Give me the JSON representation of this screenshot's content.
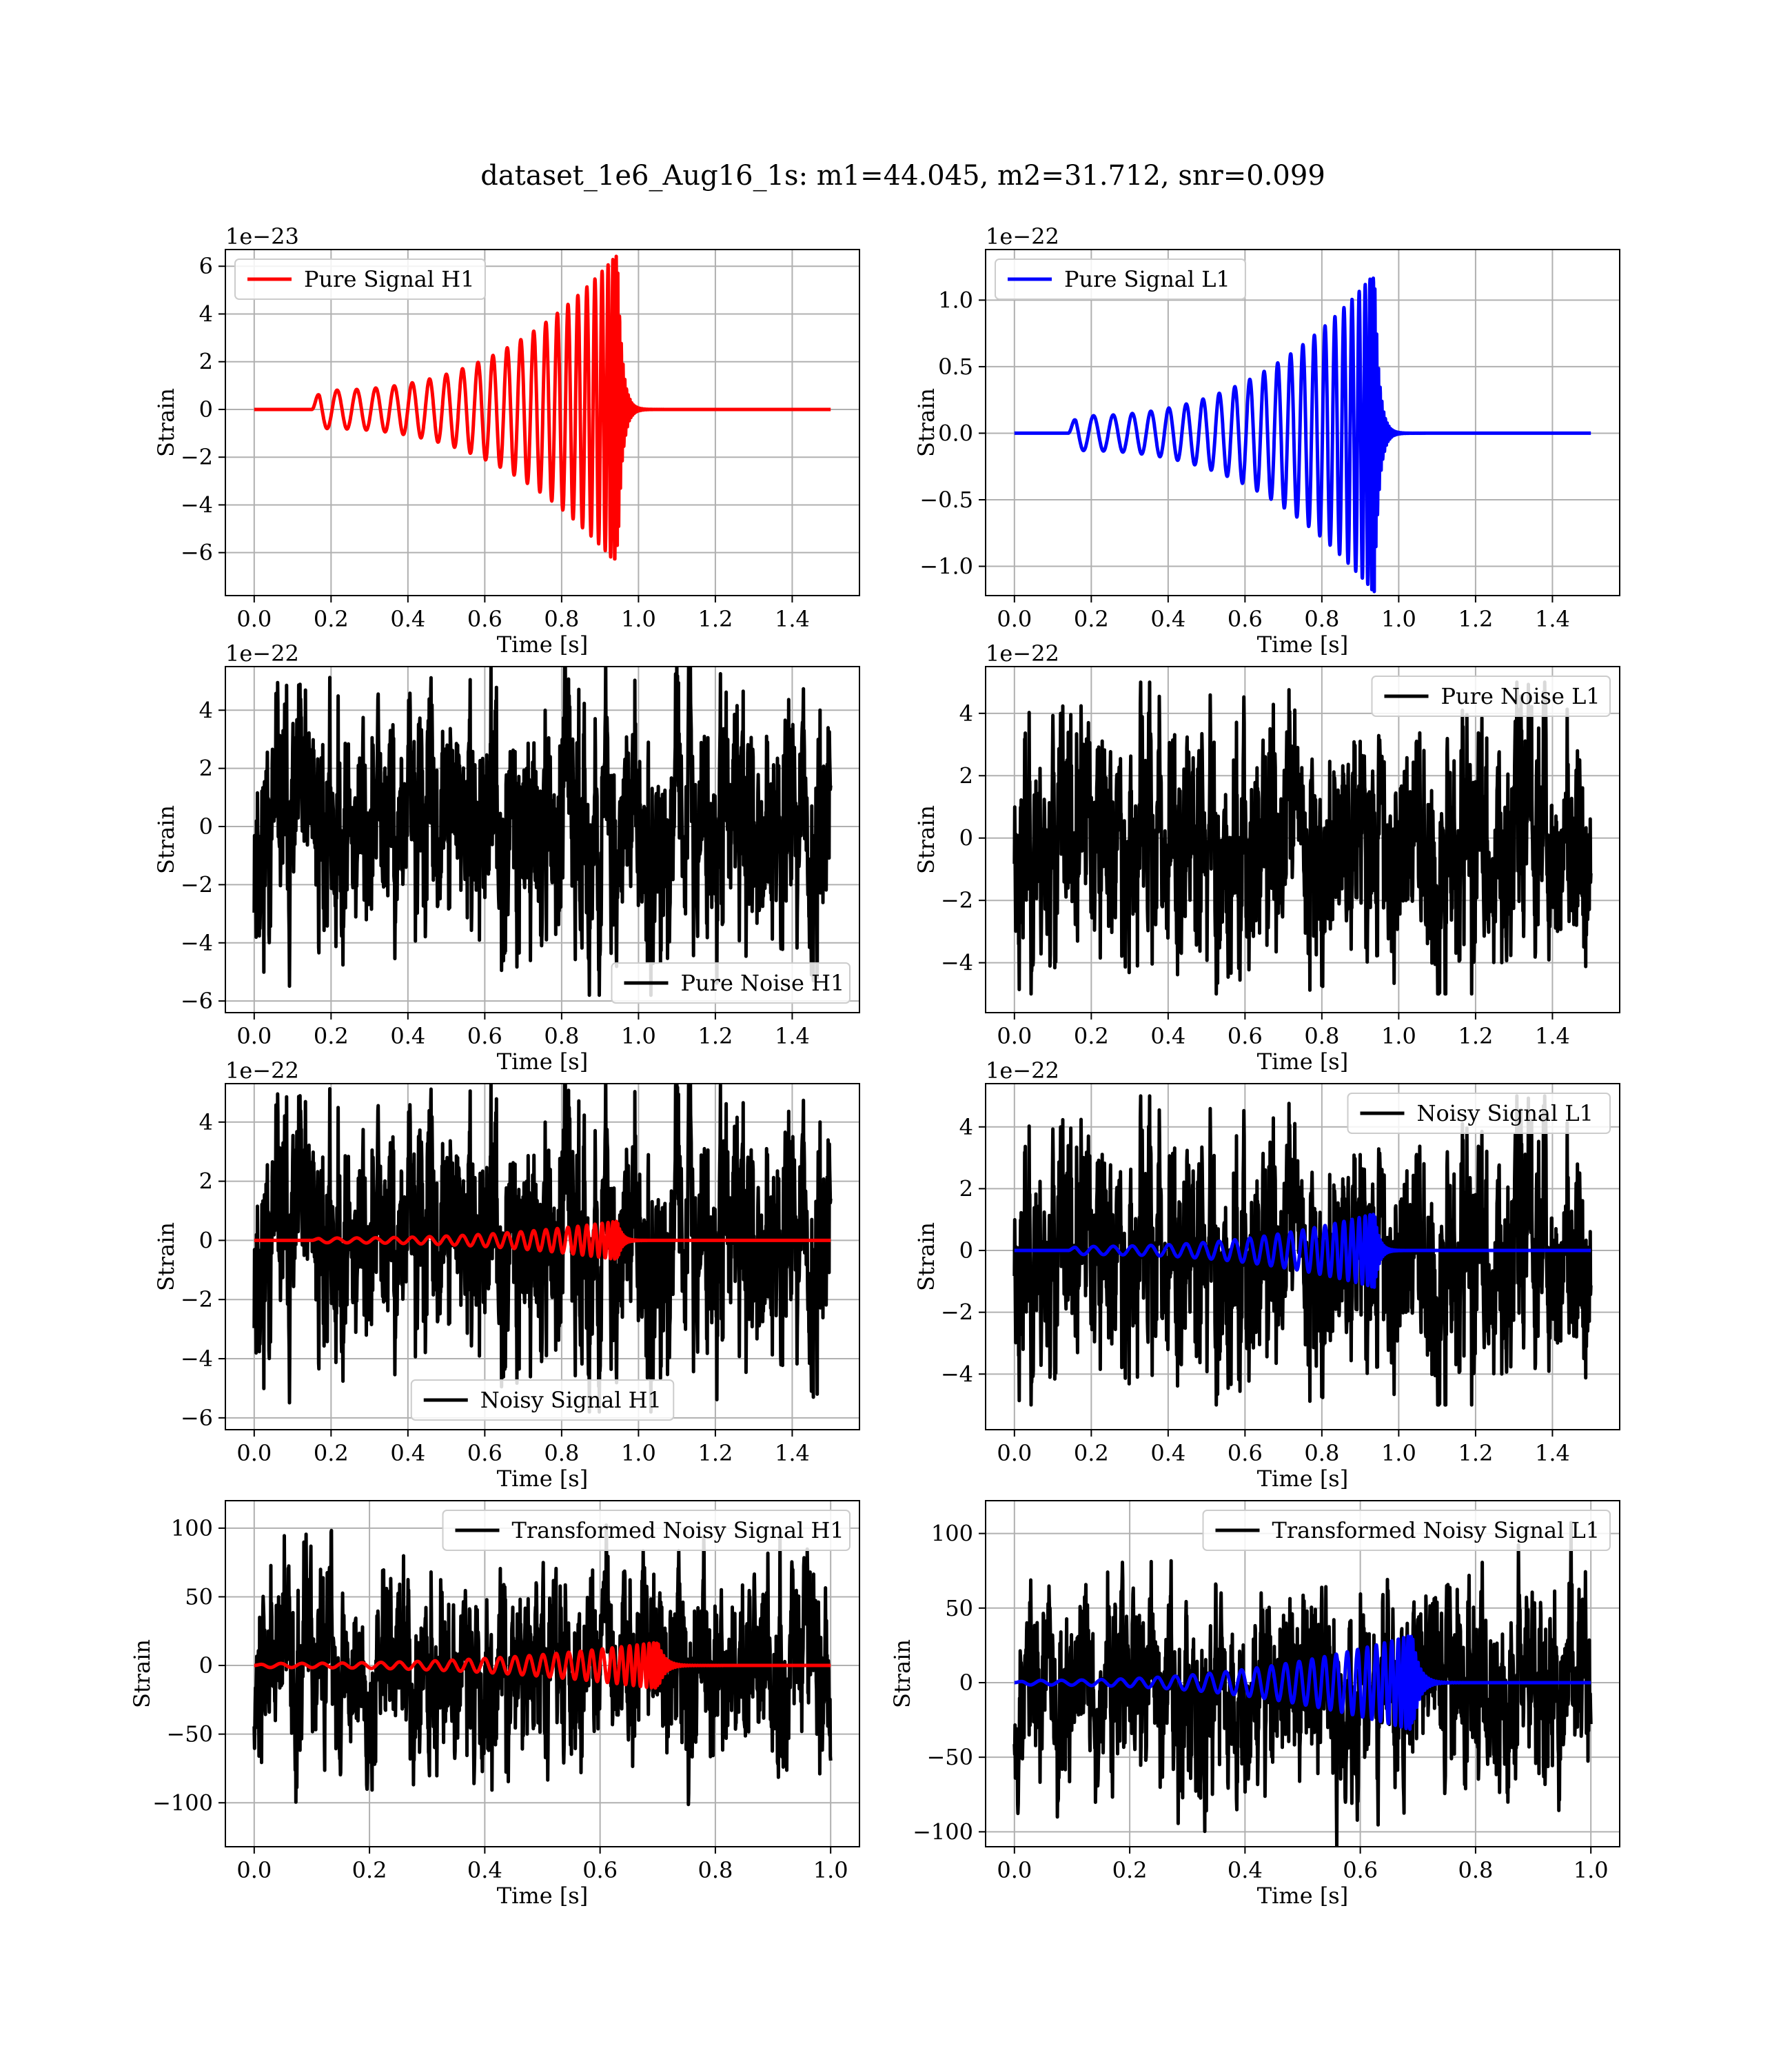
{
  "figure": {
    "title": "dataset_1e6_Aug16_1s: m1=44.045, m2=31.712, snr=0.099"
  },
  "colors": {
    "h1_signal": "#ff0000",
    "l1_signal": "#0000ff",
    "noise": "#000000",
    "grid": "#b0b0b0"
  },
  "chart_data": [
    {
      "id": "pure-signal-h1",
      "type": "line",
      "title": "",
      "xlabel": "Time [s]",
      "ylabel": "Strain",
      "offset_label": "1e−23",
      "xlim": [
        -0.075,
        1.575
      ],
      "ylim": [
        -7.8,
        6.7
      ],
      "xticks": [
        0.0,
        0.2,
        0.4,
        0.6,
        0.8,
        1.0,
        1.2,
        1.4
      ],
      "xtick_labels": [
        "0.0",
        "0.2",
        "0.4",
        "0.6",
        "0.8",
        "1.0",
        "1.2",
        "1.4"
      ],
      "yticks": [
        -6,
        -4,
        -2,
        0,
        2,
        4,
        6
      ],
      "ytick_labels": [
        "−6",
        "−4",
        "−2",
        "0",
        "2",
        "4",
        "6"
      ],
      "grid": true,
      "legend_position": "upper-left",
      "series": [
        {
          "name": "Pure Signal H1",
          "color_key": "h1_signal",
          "kind": "chirp",
          "t_start": 0.15,
          "t_merge": 0.945,
          "t_end": 1.5,
          "amp_start": 0.8,
          "amp_peak": 6.5,
          "f_start": 12,
          "cycles": 24,
          "ringdown": 0.3
        }
      ]
    },
    {
      "id": "pure-signal-l1",
      "type": "line",
      "title": "",
      "xlabel": "Time [s]",
      "ylabel": "Strain",
      "offset_label": "1e−22",
      "xlim": [
        -0.075,
        1.575
      ],
      "ylim": [
        -1.22,
        1.38
      ],
      "xticks": [
        0.0,
        0.2,
        0.4,
        0.6,
        0.8,
        1.0,
        1.2,
        1.4
      ],
      "xtick_labels": [
        "0.0",
        "0.2",
        "0.4",
        "0.6",
        "0.8",
        "1.0",
        "1.2",
        "1.4"
      ],
      "yticks": [
        -1.0,
        -0.5,
        0.0,
        0.5,
        1.0
      ],
      "ytick_labels": [
        "−1.0",
        "−0.5",
        "0.0",
        "0.5",
        "1.0"
      ],
      "grid": true,
      "legend_position": "upper-left",
      "series": [
        {
          "name": "Pure Signal L1",
          "color_key": "l1_signal",
          "kind": "chirp",
          "t_start": 0.14,
          "t_merge": 0.937,
          "t_end": 1.5,
          "amp_start": 0.13,
          "amp_peak": 1.2,
          "f_start": 12,
          "cycles": 24,
          "ringdown": 0.01
        }
      ]
    },
    {
      "id": "pure-noise-h1",
      "type": "line",
      "title": "",
      "xlabel": "Time [s]",
      "ylabel": "Strain",
      "offset_label": "1e−22",
      "xlim": [
        -0.075,
        1.575
      ],
      "ylim": [
        -6.4,
        5.5
      ],
      "xticks": [
        0.0,
        0.2,
        0.4,
        0.6,
        0.8,
        1.0,
        1.2,
        1.4
      ],
      "xtick_labels": [
        "0.0",
        "0.2",
        "0.4",
        "0.6",
        "0.8",
        "1.0",
        "1.2",
        "1.4"
      ],
      "yticks": [
        -6,
        -4,
        -2,
        0,
        2,
        4
      ],
      "ytick_labels": [
        "−6",
        "−4",
        "−2",
        "0",
        "2",
        "4"
      ],
      "grid": true,
      "legend_position": "lower-right",
      "series": [
        {
          "name": "Pure Noise H1",
          "color_key": "noise",
          "kind": "noise",
          "t_start": 0.0,
          "t_end": 1.5,
          "sigma": 1.75,
          "seed": 11,
          "amp_clip": 5.8
        }
      ]
    },
    {
      "id": "pure-noise-l1",
      "type": "line",
      "title": "",
      "xlabel": "Time [s]",
      "ylabel": "Strain",
      "offset_label": "1e−22",
      "xlim": [
        -0.075,
        1.575
      ],
      "ylim": [
        -5.6,
        5.5
      ],
      "xticks": [
        0.0,
        0.2,
        0.4,
        0.6,
        0.8,
        1.0,
        1.2,
        1.4
      ],
      "xtick_labels": [
        "0.0",
        "0.2",
        "0.4",
        "0.6",
        "0.8",
        "1.0",
        "1.2",
        "1.4"
      ],
      "yticks": [
        -4,
        -2,
        0,
        2,
        4
      ],
      "ytick_labels": [
        "−4",
        "−2",
        "0",
        "2",
        "4"
      ],
      "grid": true,
      "legend_position": "upper-right",
      "series": [
        {
          "name": "Pure Noise L1",
          "color_key": "noise",
          "kind": "noise",
          "t_start": 0.0,
          "t_end": 1.5,
          "sigma": 1.7,
          "seed": 23,
          "amp_clip": 5.0
        }
      ]
    },
    {
      "id": "noisy-signal-h1",
      "type": "line",
      "title": "",
      "xlabel": "Time [s]",
      "ylabel": "Strain",
      "offset_label": "1e−22",
      "xlim": [
        -0.075,
        1.575
      ],
      "ylim": [
        -6.4,
        5.3
      ],
      "xticks": [
        0.0,
        0.2,
        0.4,
        0.6,
        0.8,
        1.0,
        1.2,
        1.4
      ],
      "xtick_labels": [
        "0.0",
        "0.2",
        "0.4",
        "0.6",
        "0.8",
        "1.0",
        "1.2",
        "1.4"
      ],
      "yticks": [
        -6,
        -4,
        -2,
        0,
        2,
        4
      ],
      "ytick_labels": [
        "−6",
        "−4",
        "−2",
        "0",
        "2",
        "4"
      ],
      "grid": true,
      "legend_position": "lower-center",
      "series": [
        {
          "name": "Noisy Signal H1",
          "color_key": "noise",
          "kind": "noise",
          "t_start": 0.0,
          "t_end": 1.5,
          "sigma": 1.75,
          "seed": 11,
          "amp_clip": 5.8
        },
        {
          "name": "",
          "color_key": "h1_signal",
          "kind": "chirp",
          "t_start": 0.15,
          "t_merge": 0.945,
          "t_end": 1.5,
          "amp_start": 0.08,
          "amp_peak": 0.65,
          "f_start": 12,
          "cycles": 24,
          "ringdown": 0.03
        }
      ]
    },
    {
      "id": "noisy-signal-l1",
      "type": "line",
      "title": "",
      "xlabel": "Time [s]",
      "ylabel": "Strain",
      "offset_label": "1e−22",
      "xlim": [
        -0.075,
        1.575
      ],
      "ylim": [
        -5.8,
        5.4
      ],
      "xticks": [
        0.0,
        0.2,
        0.4,
        0.6,
        0.8,
        1.0,
        1.2,
        1.4
      ],
      "xtick_labels": [
        "0.0",
        "0.2",
        "0.4",
        "0.6",
        "0.8",
        "1.0",
        "1.2",
        "1.4"
      ],
      "yticks": [
        -4,
        -2,
        0,
        2,
        4
      ],
      "ytick_labels": [
        "−4",
        "−2",
        "0",
        "2",
        "4"
      ],
      "grid": true,
      "legend_position": "upper-right",
      "series": [
        {
          "name": "Noisy Signal L1",
          "color_key": "noise",
          "kind": "noise",
          "t_start": 0.0,
          "t_end": 1.5,
          "sigma": 1.7,
          "seed": 23,
          "amp_clip": 5.0
        },
        {
          "name": "",
          "color_key": "l1_signal",
          "kind": "chirp",
          "t_start": 0.14,
          "t_merge": 0.937,
          "t_end": 1.5,
          "amp_start": 0.13,
          "amp_peak": 1.2,
          "f_start": 12,
          "cycles": 24,
          "ringdown": 0.01
        }
      ]
    },
    {
      "id": "transformed-noisy-signal-h1",
      "type": "line",
      "title": "",
      "xlabel": "Time [s]",
      "ylabel": "Strain",
      "offset_label": "",
      "xlim": [
        -0.05,
        1.05
      ],
      "ylim": [
        -132,
        120
      ],
      "xticks": [
        0.0,
        0.2,
        0.4,
        0.6,
        0.8,
        1.0
      ],
      "xtick_labels": [
        "0.0",
        "0.2",
        "0.4",
        "0.6",
        "0.8",
        "1.0"
      ],
      "yticks": [
        -100,
        -50,
        0,
        50,
        100
      ],
      "ytick_labels": [
        "−100",
        "−50",
        "0",
        "50",
        "100"
      ],
      "grid": true,
      "legend_position": "upper-right",
      "series": [
        {
          "name": "Transformed Noisy Signal H1",
          "color_key": "noise",
          "kind": "noise",
          "t_start": 0.0,
          "t_end": 1.0,
          "sigma": 30,
          "seed": 37,
          "amp_clip": 118
        },
        {
          "name": "",
          "color_key": "h1_signal",
          "kind": "chirp",
          "t_start": 0.0,
          "t_merge": 0.7,
          "t_end": 1.0,
          "amp_start": 1.5,
          "amp_peak": 17,
          "f_start": 18,
          "cycles": 30,
          "ringdown": 0.02
        }
      ]
    },
    {
      "id": "transformed-noisy-signal-l1",
      "type": "line",
      "title": "",
      "xlabel": "Time [s]",
      "ylabel": "Strain",
      "offset_label": "",
      "xlim": [
        -0.05,
        1.05
      ],
      "ylim": [
        -110,
        122
      ],
      "xticks": [
        0.0,
        0.2,
        0.4,
        0.6,
        0.8,
        1.0
      ],
      "xtick_labels": [
        "0.0",
        "0.2",
        "0.4",
        "0.6",
        "0.8",
        "1.0"
      ],
      "yticks": [
        -100,
        -50,
        0,
        50,
        100
      ],
      "ytick_labels": [
        "−100",
        "−50",
        "0",
        "50",
        "100"
      ],
      "grid": true,
      "legend_position": "upper-right",
      "series": [
        {
          "name": "Transformed Noisy Signal L1",
          "color_key": "noise",
          "kind": "noise",
          "t_start": 0.0,
          "t_end": 1.0,
          "sigma": 28,
          "seed": 53,
          "amp_clip": 112
        },
        {
          "name": "",
          "color_key": "l1_signal",
          "kind": "chirp",
          "t_start": 0.0,
          "t_merge": 0.69,
          "t_end": 1.0,
          "amp_start": 1.5,
          "amp_peak": 32,
          "f_start": 18,
          "cycles": 30,
          "ringdown": 0.01
        }
      ]
    }
  ]
}
